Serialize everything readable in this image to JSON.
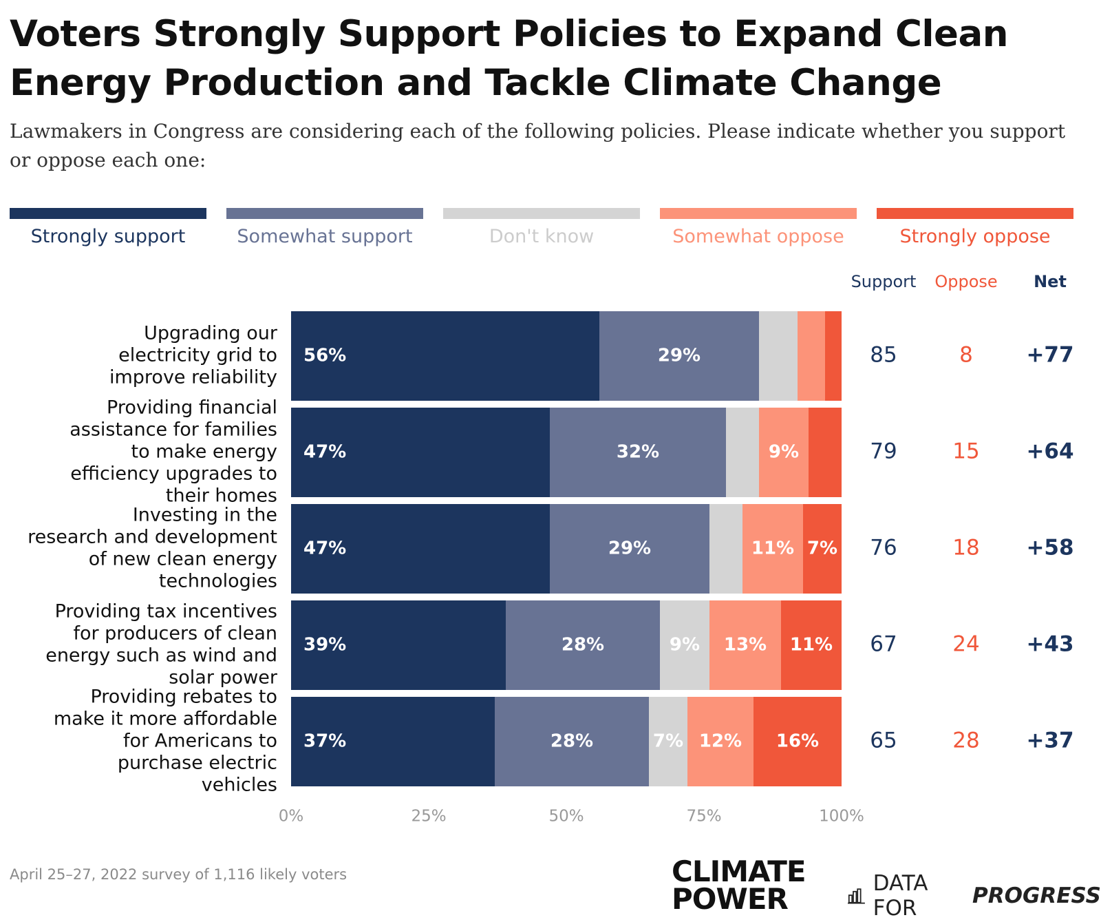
{
  "title": "Voters Strongly Support Policies to Expand Clean Energy Production and Tackle Climate Change",
  "subtitle": "Lawmakers in Congress are considering each of the following policies. Please indicate whether you support or oppose each one:",
  "legend": [
    {
      "label": "Strongly support",
      "color": "#1c355e"
    },
    {
      "label": "Somewhat support",
      "color": "#687394"
    },
    {
      "label": "Don't know",
      "color": "#d4d4d4"
    },
    {
      "label": "Somewhat oppose",
      "color": "#fc9379"
    },
    {
      "label": "Strongly oppose",
      "color": "#f0573a"
    }
  ],
  "columns": {
    "support": "Support",
    "oppose": "Oppose",
    "net": "Net"
  },
  "footnote": "April 25–27, 2022 survey of 1,116 likely voters",
  "logos": {
    "climate_power": "CLIMATE POWER",
    "dfp_prefix": "DATA FOR",
    "dfp_suffix": "PROGRESS"
  },
  "chart_data": {
    "type": "bar",
    "orientation": "horizontal",
    "stacked": true,
    "categories": [
      "Upgrading our electricity grid to improve reliability",
      "Providing financial assistance for families to make energy efficiency upgrades to their homes",
      "Investing in the research and development of new clean energy technologies",
      "Providing tax incentives for producers of clean energy such as wind and solar power",
      "Providing rebates to make it more affordable for Americans to purchase electric vehicles"
    ],
    "series": [
      {
        "name": "Strongly support",
        "values": [
          56,
          47,
          47,
          39,
          37
        ],
        "labels": [
          "56%",
          "47%",
          "47%",
          "39%",
          "37%"
        ]
      },
      {
        "name": "Somewhat support",
        "values": [
          29,
          32,
          29,
          28,
          28
        ],
        "labels": [
          "29%",
          "32%",
          "29%",
          "28%",
          "28%"
        ]
      },
      {
        "name": "Don't know",
        "values": [
          7,
          6,
          6,
          9,
          7
        ],
        "labels": [
          "",
          "",
          "",
          "9%",
          "7%"
        ]
      },
      {
        "name": "Somewhat oppose",
        "values": [
          5,
          9,
          11,
          13,
          12
        ],
        "labels": [
          "",
          "9%",
          "11%",
          "13%",
          "12%"
        ]
      },
      {
        "name": "Strongly oppose",
        "values": [
          3,
          6,
          7,
          11,
          16
        ],
        "labels": [
          "",
          "",
          "7%",
          "11%",
          "16%"
        ]
      }
    ],
    "support": [
      85,
      79,
      76,
      67,
      65
    ],
    "oppose": [
      8,
      15,
      18,
      24,
      28
    ],
    "net": [
      "+77",
      "+64",
      "+58",
      "+43",
      "+37"
    ],
    "xlim": [
      0,
      100
    ],
    "xticks": [
      "0%",
      "25%",
      "50%",
      "75%",
      "100%"
    ],
    "grid": false
  }
}
